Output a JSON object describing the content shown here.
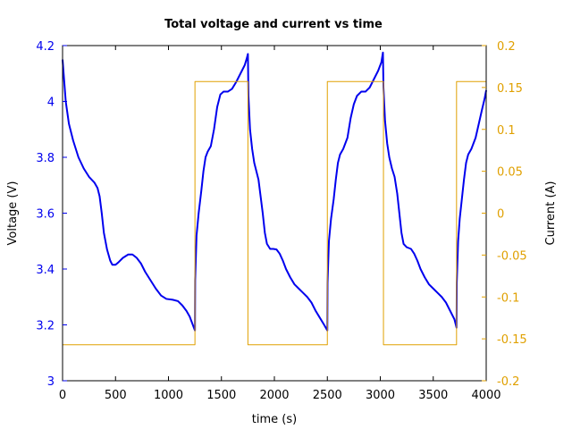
{
  "chart_data": {
    "type": "line",
    "title": "Total voltage and current vs time",
    "xlabel": "time (s)",
    "ylabel_left": "Voltage (V)",
    "ylabel_right": "Current (A)",
    "xlim": [
      0,
      4000
    ],
    "ylim_left": [
      3.0,
      4.2
    ],
    "ylim_right": [
      -0.2,
      0.2
    ],
    "x_ticks": [
      0,
      500,
      1000,
      1500,
      2000,
      2500,
      3000,
      3500,
      4000
    ],
    "y_left_ticks": [
      "3",
      "3.2",
      "3.4",
      "3.6",
      "3.8",
      "4",
      "4.2"
    ],
    "y_left_tick_values": [
      3.0,
      3.2,
      3.4,
      3.6,
      3.8,
      4.0,
      4.2
    ],
    "y_right_ticks": [
      "-0.2",
      "-0.15",
      "-0.1",
      "-0.05",
      "0",
      "0.05",
      "0.1",
      "0.15",
      "0.2"
    ],
    "y_right_tick_values": [
      -0.2,
      -0.15,
      -0.1,
      -0.05,
      0.0,
      0.05,
      0.1,
      0.15,
      0.2
    ],
    "grid": false,
    "series": [
      {
        "axis": "left",
        "color": "#0000ee",
        "points": [
          [
            0,
            4.15
          ],
          [
            10,
            4.1
          ],
          [
            30,
            4.0
          ],
          [
            60,
            3.92
          ],
          [
            100,
            3.86
          ],
          [
            150,
            3.8
          ],
          [
            200,
            3.76
          ],
          [
            250,
            3.73
          ],
          [
            300,
            3.71
          ],
          [
            330,
            3.69
          ],
          [
            350,
            3.66
          ],
          [
            370,
            3.6
          ],
          [
            390,
            3.53
          ],
          [
            420,
            3.47
          ],
          [
            450,
            3.43
          ],
          [
            470,
            3.415
          ],
          [
            500,
            3.415
          ],
          [
            530,
            3.425
          ],
          [
            570,
            3.44
          ],
          [
            620,
            3.452
          ],
          [
            660,
            3.452
          ],
          [
            700,
            3.44
          ],
          [
            740,
            3.42
          ],
          [
            780,
            3.39
          ],
          [
            830,
            3.36
          ],
          [
            880,
            3.33
          ],
          [
            930,
            3.305
          ],
          [
            980,
            3.293
          ],
          [
            1040,
            3.29
          ],
          [
            1090,
            3.285
          ],
          [
            1130,
            3.27
          ],
          [
            1170,
            3.25
          ],
          [
            1200,
            3.23
          ],
          [
            1230,
            3.2
          ],
          [
            1250,
            3.18
          ],
          [
            1252,
            3.36
          ],
          [
            1265,
            3.52
          ],
          [
            1285,
            3.6
          ],
          [
            1310,
            3.68
          ],
          [
            1330,
            3.75
          ],
          [
            1350,
            3.8
          ],
          [
            1370,
            3.82
          ],
          [
            1400,
            3.84
          ],
          [
            1430,
            3.9
          ],
          [
            1460,
            3.98
          ],
          [
            1490,
            4.025
          ],
          [
            1520,
            4.035
          ],
          [
            1560,
            4.035
          ],
          [
            1600,
            4.045
          ],
          [
            1640,
            4.07
          ],
          [
            1680,
            4.1
          ],
          [
            1720,
            4.13
          ],
          [
            1740,
            4.155
          ],
          [
            1750,
            4.17
          ],
          [
            1755,
            4.02
          ],
          [
            1770,
            3.9
          ],
          [
            1790,
            3.83
          ],
          [
            1810,
            3.78
          ],
          [
            1830,
            3.75
          ],
          [
            1850,
            3.72
          ],
          [
            1870,
            3.66
          ],
          [
            1890,
            3.6
          ],
          [
            1910,
            3.53
          ],
          [
            1930,
            3.49
          ],
          [
            1960,
            3.472
          ],
          [
            1990,
            3.472
          ],
          [
            2020,
            3.47
          ],
          [
            2050,
            3.455
          ],
          [
            2080,
            3.43
          ],
          [
            2110,
            3.4
          ],
          [
            2150,
            3.37
          ],
          [
            2190,
            3.345
          ],
          [
            2230,
            3.33
          ],
          [
            2270,
            3.315
          ],
          [
            2310,
            3.3
          ],
          [
            2350,
            3.28
          ],
          [
            2390,
            3.25
          ],
          [
            2430,
            3.225
          ],
          [
            2470,
            3.2
          ],
          [
            2500,
            3.18
          ],
          [
            2502,
            3.35
          ],
          [
            2515,
            3.5
          ],
          [
            2535,
            3.58
          ],
          [
            2560,
            3.65
          ],
          [
            2580,
            3.72
          ],
          [
            2600,
            3.78
          ],
          [
            2620,
            3.81
          ],
          [
            2650,
            3.83
          ],
          [
            2690,
            3.87
          ],
          [
            2720,
            3.94
          ],
          [
            2750,
            3.99
          ],
          [
            2780,
            4.02
          ],
          [
            2820,
            4.035
          ],
          [
            2860,
            4.035
          ],
          [
            2900,
            4.05
          ],
          [
            2940,
            4.08
          ],
          [
            2980,
            4.11
          ],
          [
            3010,
            4.14
          ],
          [
            3025,
            4.175
          ],
          [
            3030,
            4.05
          ],
          [
            3045,
            3.93
          ],
          [
            3065,
            3.85
          ],
          [
            3085,
            3.8
          ],
          [
            3110,
            3.76
          ],
          [
            3135,
            3.73
          ],
          [
            3160,
            3.67
          ],
          [
            3180,
            3.6
          ],
          [
            3200,
            3.53
          ],
          [
            3220,
            3.49
          ],
          [
            3250,
            3.478
          ],
          [
            3290,
            3.472
          ],
          [
            3320,
            3.455
          ],
          [
            3350,
            3.43
          ],
          [
            3380,
            3.4
          ],
          [
            3420,
            3.37
          ],
          [
            3460,
            3.345
          ],
          [
            3500,
            3.33
          ],
          [
            3540,
            3.315
          ],
          [
            3580,
            3.3
          ],
          [
            3620,
            3.28
          ],
          [
            3660,
            3.25
          ],
          [
            3700,
            3.22
          ],
          [
            3720,
            3.19
          ],
          [
            3722,
            3.35
          ],
          [
            3735,
            3.5
          ],
          [
            3750,
            3.58
          ],
          [
            3770,
            3.65
          ],
          [
            3790,
            3.72
          ],
          [
            3810,
            3.78
          ],
          [
            3830,
            3.81
          ],
          [
            3860,
            3.83
          ],
          [
            3900,
            3.87
          ],
          [
            3930,
            3.92
          ],
          [
            3960,
            3.97
          ],
          [
            3985,
            4.01
          ],
          [
            4000,
            4.04
          ]
        ]
      },
      {
        "axis": "right",
        "color": "#e0a000",
        "points": [
          [
            0,
            -0.157
          ],
          [
            1250,
            -0.157
          ],
          [
            1250,
            0.157
          ],
          [
            1750,
            0.157
          ],
          [
            1750,
            -0.157
          ],
          [
            2500,
            -0.157
          ],
          [
            2500,
            0.157
          ],
          [
            3030,
            0.157
          ],
          [
            3030,
            -0.157
          ],
          [
            3720,
            -0.157
          ],
          [
            3720,
            0.157
          ],
          [
            4000,
            0.157
          ]
        ]
      }
    ]
  }
}
